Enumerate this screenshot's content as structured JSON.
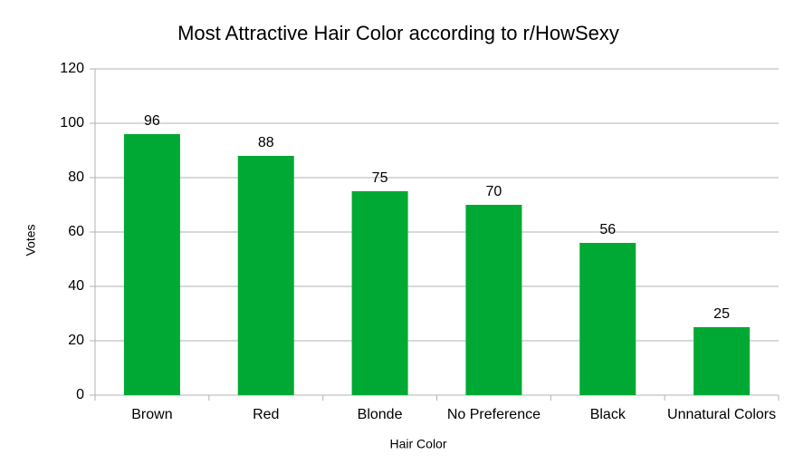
{
  "chart_data": {
    "type": "bar",
    "title": "Most Attractive Hair Color according to r/HowSexy",
    "x_label": "Hair Color",
    "y_label": "Votes",
    "categories": [
      "Brown",
      "Red",
      "Blonde",
      "No Preference",
      "Black",
      "Unnatural Colors"
    ],
    "values": [
      96,
      88,
      75,
      70,
      56,
      25
    ],
    "color": "#00a933",
    "ylim": [
      0,
      120
    ],
    "yticks": [
      0,
      20,
      40,
      60,
      80,
      100,
      120
    ],
    "grid": true
  }
}
